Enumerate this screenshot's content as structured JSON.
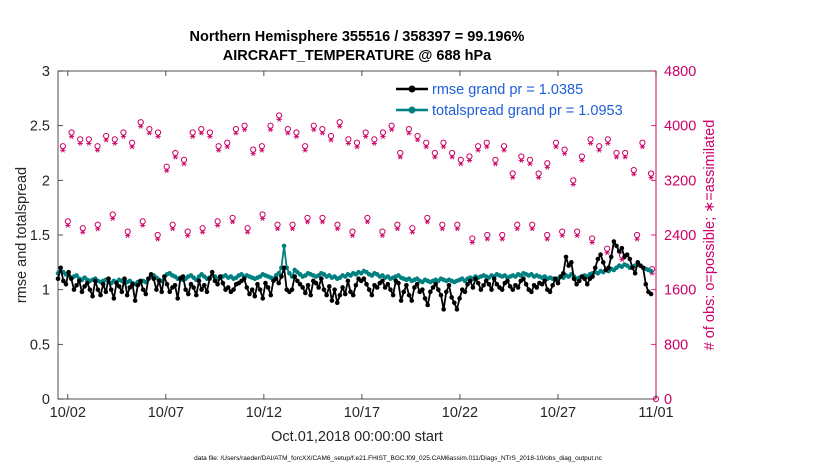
{
  "chart_data": {
    "type": "line",
    "title_line1": "Northern Hemisphere 355516 / 358397 = 99.196%",
    "title_line2": "AIRCRAFT_TEMPERATURE @ 688 hPa",
    "xlabel": "Oct.01,2018 00:00:00 start",
    "ylabel_left": "rmse and totalspread",
    "ylabel_right": "# of obs: o=possible; ∗=assimilated",
    "footer": "data file: /Users/raeder/DAI/ATM_forcXX/CAM6_setup/f.e21.FHIST_BGC.f09_025.CAM6assim.011/Diags_NTrS_2018-10/obs_diag_output.nc",
    "xlim": [
      1.5,
      32
    ],
    "ylim_left": [
      0,
      3
    ],
    "ylim_right": [
      0,
      4800
    ],
    "x_ticks": [
      2,
      7,
      12,
      17,
      22,
      27,
      32
    ],
    "x_tick_labels": [
      "10/02",
      "10/07",
      "10/12",
      "10/17",
      "10/22",
      "10/27",
      "11/01"
    ],
    "y_ticks_left": [
      "0",
      "0.5",
      "1",
      "1.5",
      "2",
      "2.5",
      "3"
    ],
    "y_ticks_right": [
      "0",
      "800",
      "1600",
      "2400",
      "3200",
      "4000",
      "4800"
    ],
    "colors": {
      "rmse": "#000000",
      "spread": "#008080",
      "obs": "#cc0066",
      "legend_text": "#1f5fd6"
    },
    "series": [
      {
        "name": "rmse grand pr = 1.0385",
        "values": [
          1.1,
          1.2,
          1.08,
          1.05,
          1.16,
          1.1,
          1.0,
          1.04,
          1.08,
          0.98,
          1.03,
          1.06,
          1.0,
          0.94,
          1.08,
          1.0,
          0.95,
          1.05,
          0.98,
          1.1,
          1.0,
          0.92,
          1.06,
          1.03,
          0.98,
          1.1,
          0.95,
          1.02,
          1.05,
          0.9,
          1.04,
          1.08,
          1.0,
          0.96,
          1.1,
          1.14,
          1.1,
          1.0,
          1.08,
          0.98,
          1.12,
          1.05,
          0.98,
          1.02,
          1.04,
          0.92,
          1.1,
          1.12,
          1.0,
          0.96,
          1.05,
          1.02,
          0.95,
          1.08,
          1.0,
          1.04,
          0.98,
          1.1,
          1.16,
          1.08,
          1.05,
          1.12,
          1.06,
          1.0,
          1.02,
          0.98,
          1.0,
          1.05,
          1.06,
          1.08,
          1.1,
          1.02,
          0.96,
          1.0,
          0.94,
          1.05,
          1.0,
          0.92,
          1.06,
          1.02,
          0.95,
          1.08,
          1.1,
          1.06,
          1.12,
          1.2,
          1.0,
          0.98,
          1.0,
          1.12,
          1.08,
          1.05,
          1.02,
          0.97,
          1.04,
          0.95,
          1.08,
          1.06,
          1.02,
          1.1,
          1.0,
          0.95,
          1.03,
          0.9,
          1.0,
          0.88,
          0.95,
          1.02,
          0.96,
          1.08,
          0.98,
          0.95,
          1.04,
          1.1,
          1.08,
          1.1,
          1.05,
          1.0,
          0.95,
          1.04,
          1.02,
          1.06,
          1.08,
          1.02,
          1.05,
          1.0,
          0.95,
          1.08,
          1.06,
          0.9,
          0.98,
          1.04,
          0.95,
          0.9,
          1.02,
          1.05,
          0.98,
          1.0,
          0.92,
          0.86,
          0.98,
          1.02,
          1.05,
          1.0,
          0.95,
          0.82,
          0.98,
          1.04,
          0.93,
          0.88,
          0.82,
          0.92,
          1.0,
          0.98,
          1.05,
          1.08,
          1.02,
          1.1,
          1.06,
          1.0,
          1.04,
          1.08,
          1.05,
          1.0,
          1.1,
          1.05,
          1.02,
          1.0,
          1.06,
          1.08,
          1.03,
          1.0,
          1.04,
          1.02,
          1.08,
          1.1,
          1.05,
          1.0,
          0.98,
          1.04,
          1.02,
          1.06,
          1.05,
          1.08,
          1.0,
          0.98,
          1.04,
          1.1,
          1.06,
          1.12,
          1.15,
          1.3,
          1.22,
          1.25,
          1.1,
          1.05,
          1.08,
          1.12,
          1.1,
          1.05,
          1.1,
          1.12,
          1.2,
          1.28,
          1.32,
          1.25,
          1.18,
          1.2,
          1.3,
          1.44,
          1.4,
          1.35,
          1.38,
          1.3,
          1.32,
          1.28,
          1.2,
          1.15,
          1.25,
          1.22,
          1.2,
          1.05,
          0.98,
          0.96
        ]
      },
      {
        "name": "totalspread grand pr = 1.0953",
        "values": [
          1.15,
          1.17,
          1.16,
          1.14,
          1.13,
          1.11,
          1.12,
          1.13,
          1.1,
          1.09,
          1.11,
          1.09,
          1.08,
          1.09,
          1.1,
          1.08,
          1.07,
          1.08,
          1.09,
          1.07,
          1.06,
          1.08,
          1.07,
          1.09,
          1.08,
          1.06,
          1.07,
          1.08,
          1.06,
          1.05,
          1.07,
          1.06,
          1.08,
          1.07,
          1.1,
          1.12,
          1.13,
          1.11,
          1.09,
          1.08,
          1.12,
          1.14,
          1.15,
          1.13,
          1.12,
          1.1,
          1.11,
          1.09,
          1.1,
          1.12,
          1.13,
          1.11,
          1.09,
          1.12,
          1.14,
          1.12,
          1.1,
          1.11,
          1.13,
          1.12,
          1.1,
          1.11,
          1.12,
          1.13,
          1.11,
          1.12,
          1.1,
          1.11,
          1.13,
          1.14,
          1.12,
          1.13,
          1.12,
          1.11,
          1.1,
          1.11,
          1.12,
          1.14,
          1.13,
          1.12,
          1.11,
          1.1,
          1.13,
          1.15,
          1.2,
          1.4,
          1.2,
          1.15,
          1.12,
          1.18,
          1.16,
          1.14,
          1.12,
          1.13,
          1.15,
          1.14,
          1.13,
          1.12,
          1.13,
          1.15,
          1.14,
          1.12,
          1.13,
          1.11,
          1.12,
          1.1,
          1.11,
          1.13,
          1.12,
          1.14,
          1.13,
          1.15,
          1.14,
          1.16,
          1.15,
          1.17,
          1.16,
          1.14,
          1.13,
          1.15,
          1.14,
          1.12,
          1.13,
          1.11,
          1.12,
          1.1,
          1.11,
          1.12,
          1.13,
          1.11,
          1.1,
          1.09,
          1.1,
          1.08,
          1.09,
          1.1,
          1.08,
          1.07,
          1.09,
          1.08,
          1.07,
          1.08,
          1.09,
          1.08,
          1.1,
          1.09,
          1.08,
          1.09,
          1.08,
          1.07,
          1.08,
          1.09,
          1.1,
          1.08,
          1.1,
          1.11,
          1.1,
          1.12,
          1.11,
          1.12,
          1.13,
          1.12,
          1.11,
          1.13,
          1.12,
          1.14,
          1.13,
          1.12,
          1.13,
          1.11,
          1.12,
          1.13,
          1.12,
          1.14,
          1.13,
          1.15,
          1.14,
          1.13,
          1.14,
          1.12,
          1.13,
          1.12,
          1.11,
          1.12,
          1.1,
          1.11,
          1.1,
          1.09,
          1.1,
          1.12,
          1.11,
          1.13,
          1.12,
          1.14,
          1.12,
          1.1,
          1.11,
          1.12,
          1.13,
          1.12,
          1.14,
          1.15,
          1.16,
          1.15,
          1.17,
          1.16,
          1.18,
          1.17,
          1.19,
          1.18,
          1.2,
          1.22,
          1.21,
          1.23,
          1.22,
          1.2,
          1.21,
          1.22,
          1.23,
          1.22,
          1.2,
          1.19,
          1.18,
          1.17
        ]
      },
      {
        "name": "obs possible (upper)",
        "values": [
          3700,
          3900,
          3800,
          3800,
          3700,
          3850,
          3800,
          3900,
          3750,
          4050,
          3950,
          3900,
          3400,
          3600,
          3500,
          3900,
          3950,
          3900,
          3700,
          3750,
          3950,
          4000,
          3650,
          3700,
          4000,
          4150,
          3950,
          3900,
          3700,
          4000,
          3950,
          3850,
          4050,
          3800,
          3750,
          3900,
          3800,
          3900,
          4000,
          3600,
          3950,
          3850,
          3750,
          3600,
          3750,
          3600,
          3500,
          3550,
          3700,
          3750,
          3500,
          3700,
          3300,
          3550,
          3500,
          3300,
          3450,
          3750,
          3650,
          3200,
          3550,
          3800,
          3700,
          3800,
          3600,
          3600,
          3350,
          3750,
          3300
        ]
      },
      {
        "name": "obs assimilated (upper)",
        "values": [
          3640,
          3840,
          3740,
          3740,
          3640,
          3790,
          3740,
          3840,
          3690,
          3990,
          3890,
          3840,
          3340,
          3540,
          3440,
          3840,
          3890,
          3840,
          3640,
          3690,
          3890,
          3940,
          3590,
          3640,
          3940,
          4090,
          3890,
          3840,
          3640,
          3940,
          3890,
          3790,
          3990,
          3740,
          3690,
          3840,
          3740,
          3840,
          3940,
          3540,
          3890,
          3790,
          3690,
          3540,
          3690,
          3540,
          3440,
          3490,
          3640,
          3690,
          3440,
          3640,
          3240,
          3490,
          3440,
          3240,
          3390,
          3690,
          3590,
          3140,
          3490,
          3740,
          3640,
          3740,
          3540,
          3540,
          3290,
          3690,
          3240
        ]
      },
      {
        "name": "obs possible (lower)",
        "values": [
          2600,
          2500,
          2550,
          2700,
          2450,
          2600,
          2400,
          2550,
          2450,
          2500,
          2600,
          2650,
          2500,
          2700,
          2550,
          2550,
          2650,
          2650,
          2550,
          2450,
          2650,
          2450,
          2550,
          2500,
          2650,
          2550,
          2550,
          2350,
          2400,
          2400,
          2550,
          2550,
          2400,
          2450,
          2450,
          2350,
          2200,
          2100,
          2400,
          1900
        ]
      },
      {
        "name": "obs assimilated (lower)",
        "values": [
          2540,
          2440,
          2490,
          2640,
          2390,
          2540,
          2340,
          2490,
          2390,
          2440,
          2540,
          2590,
          2440,
          2640,
          2490,
          2490,
          2590,
          2590,
          2490,
          2390,
          2590,
          2390,
          2490,
          2440,
          2590,
          2490,
          2490,
          2290,
          2340,
          2340,
          2490,
          2490,
          2340,
          2390,
          2390,
          2290,
          2140,
          2040,
          2340,
          1840
        ]
      }
    ]
  }
}
